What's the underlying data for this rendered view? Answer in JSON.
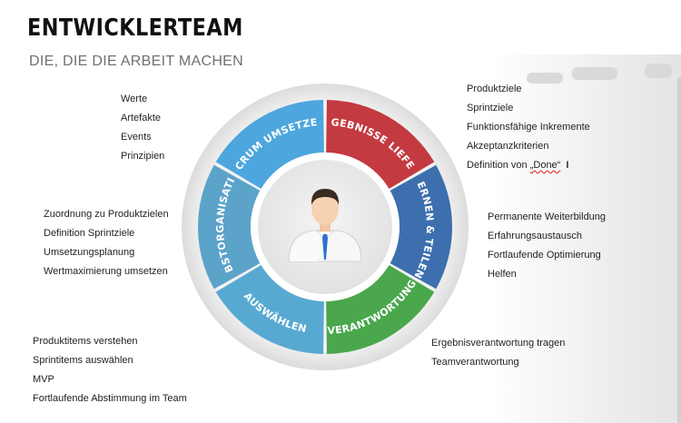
{
  "header": {
    "title": "ENTWICKLERTEAM",
    "subtitle": "DIE, DIE DIE ARBEIT MACHEN"
  },
  "segments": [
    {
      "label": "SCRUM UMSETZEN",
      "color": "#4da6de"
    },
    {
      "label": "ERGEBNISSE LIEFERN",
      "color": "#c43a41"
    },
    {
      "label": "LERNEN & TEILEN",
      "color": "#3d6fae"
    },
    {
      "label": "VERANTWORTUNG",
      "color": "#4aa74c"
    },
    {
      "label": "AUSWÄHLEN",
      "color": "#57a9d2"
    },
    {
      "label": "SELBSTORGANISATION",
      "color": "#5ba3c9"
    }
  ],
  "lists": {
    "scrum": [
      "Werte",
      "Artefakte",
      "Events",
      "Prinzipien"
    ],
    "ergebnisse": [
      "Produktziele",
      "Sprintziele",
      "Funktionsfähige Inkremente",
      "Akzeptanzkriterien"
    ],
    "ergebnisse_last_prefix": "Definition von ",
    "ergebnisse_last_word": "„Done“",
    "lernen": [
      "Permanente Weiterbildung",
      "Erfahrungsaustausch",
      "Fortlaufende Optimierung",
      "Helfen"
    ],
    "selbst": [
      "Zuordnung zu Produktzielen",
      "Definition Sprintziele",
      "Umsetzungsplanung",
      "Wertmaximierung umsetzen"
    ],
    "auswaehlen": [
      "Produktitems verstehen",
      "Sprintitems auswählen",
      "MVP",
      "Fortlaufende Abstimmung im Team"
    ],
    "verantwortung": [
      "Ergebnisverantwortung tragen",
      "Teamverantwortung"
    ]
  },
  "icons": {
    "center": "person-avatar-icon",
    "cursor": "text-cursor-icon"
  }
}
